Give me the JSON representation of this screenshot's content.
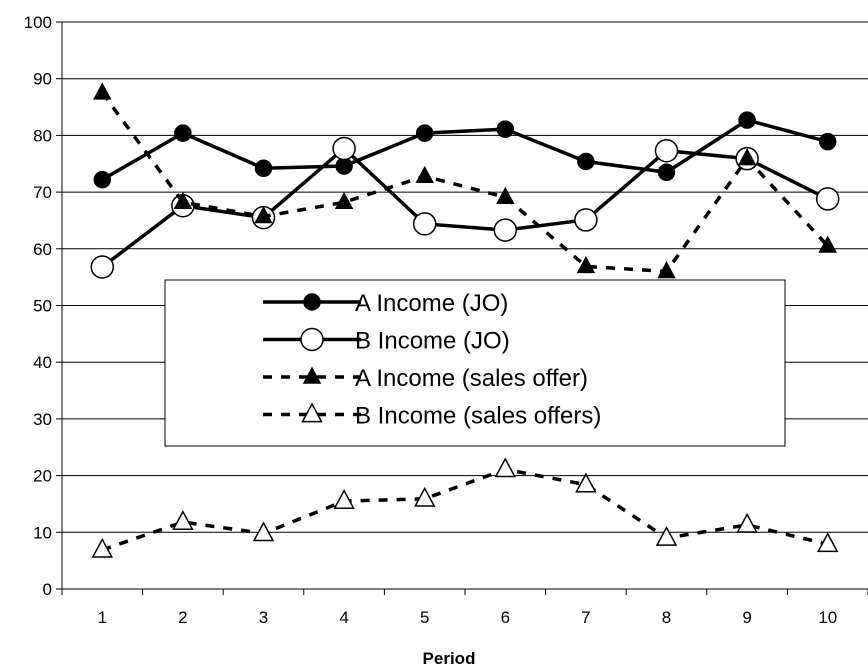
{
  "chart_data": {
    "type": "line",
    "title": "",
    "xlabel": "Period",
    "ylabel": "",
    "categories": [
      "1",
      "2",
      "3",
      "4",
      "5",
      "6",
      "7",
      "8",
      "9",
      "10"
    ],
    "ylim": [
      0,
      100
    ],
    "yticks": [
      "0",
      "10",
      "20",
      "30",
      "40",
      "50",
      "60",
      "70",
      "80",
      "90",
      "100"
    ],
    "grid": "horizontal",
    "legend_position": "center",
    "series": [
      {
        "name": "A Income (JO)",
        "line_style": "solid",
        "marker": "filled-circle",
        "color": "#000000",
        "values": [
          72.2,
          80.4,
          74.2,
          74.6,
          80.4,
          81.1,
          75.4,
          73.5,
          82.7,
          78.9
        ]
      },
      {
        "name": "B Income (JO)",
        "line_style": "solid",
        "marker": "open-circle",
        "color": "#000000",
        "values": [
          56.8,
          67.6,
          65.5,
          77.7,
          64.4,
          63.3,
          65.1,
          77.3,
          75.9,
          68.8
        ]
      },
      {
        "name": "A Income (sales offer)",
        "line_style": "dashed",
        "marker": "filled-triangle",
        "color": "#000000",
        "values": [
          87.5,
          68.2,
          65.7,
          68.2,
          72.8,
          69.1,
          56.9,
          56.0,
          75.9,
          60.5
        ]
      },
      {
        "name": "B Income (sales offers)",
        "line_style": "dashed",
        "marker": "open-triangle",
        "color": "#000000",
        "values": [
          6.9,
          11.8,
          9.8,
          15.5,
          15.9,
          21.1,
          18.4,
          9.0,
          11.3,
          7.9
        ]
      }
    ]
  }
}
